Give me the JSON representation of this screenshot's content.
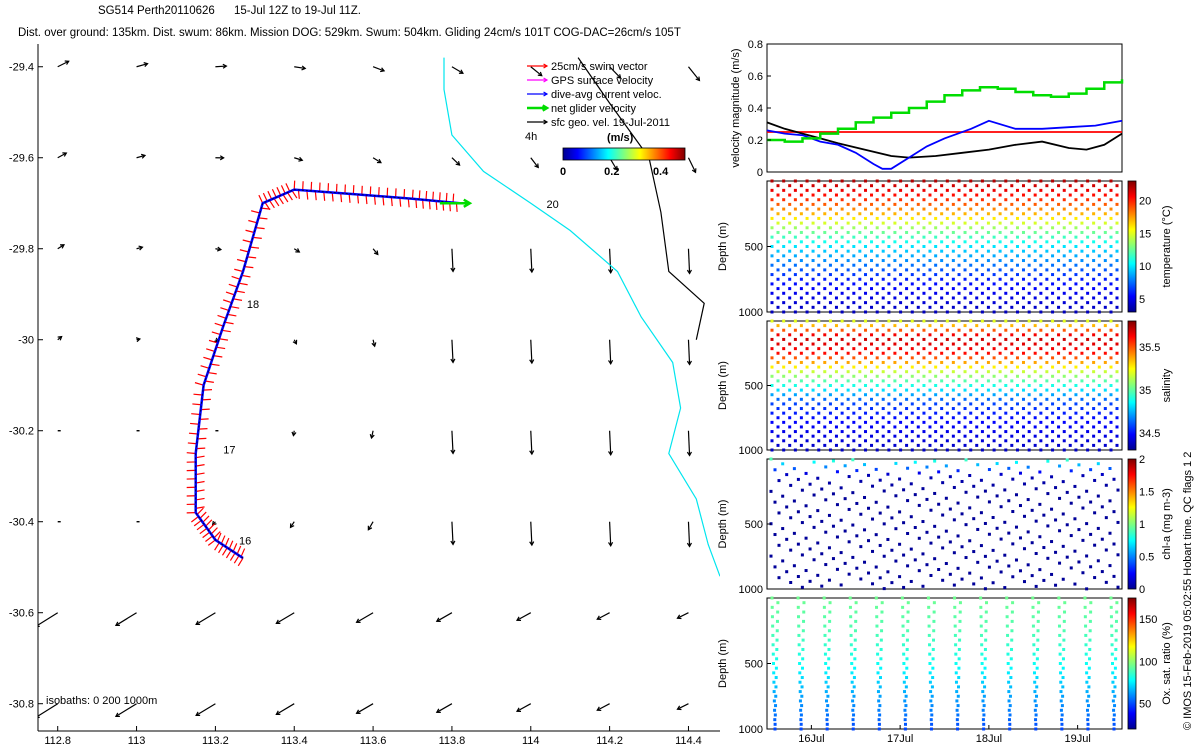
{
  "header": {
    "line1_id": "SG514 Perth20110626",
    "line1_dates": "15-Jul 12Z to 19-Jul 11Z.",
    "line2": "Dist. over ground: 135km. Dist. swum: 86km. Mission DOG: 529km. Swum: 504km. Gliding 24cm/s 101T COG-DAC=26cm/s 105T"
  },
  "side_note": "© IMOS 15-Feb-2019 05:02:55 Hobart time. QC flags 1  2",
  "colors": {
    "swim": "#ff0000",
    "gps": "#ff00ff",
    "dac": "#0000ff",
    "net": "#00dd00",
    "geo": "#000000",
    "cyan_isobath": "#00e5ee",
    "black_isobath": "#000000"
  },
  "map": {
    "xlim": [
      112.75,
      114.48
    ],
    "ylim": [
      -30.86,
      -29.35
    ],
    "xticks": [
      "112.8",
      "113",
      "113.2",
      "113.4",
      "113.6",
      "113.8",
      "114",
      "114.2",
      "114.4"
    ],
    "yticks": [
      "-29.4",
      "-29.6",
      "-29.8",
      "-30",
      "-30.2",
      "-30.4",
      "-30.6",
      "-30.8"
    ],
    "legend": [
      {
        "label": "25cm/s swim vector",
        "color": "#ff0000",
        "kind": "swim"
      },
      {
        "label": "GPS surface velocity",
        "color": "#ff00ff",
        "kind": "gps"
      },
      {
        "label": "dive-avg current veloc.",
        "color": "#0000ff",
        "kind": "dac"
      },
      {
        "label": "net glider velocity",
        "color": "#00dd00",
        "kind": "net"
      },
      {
        "label": "sfc geo. vel. 19-Jul-2011",
        "color": "#000000",
        "kind": "geo"
      }
    ],
    "scale_label": "4h",
    "speed_colorbar": {
      "label": "(m/s)",
      "ticks": [
        "0",
        "0.2",
        "0.4"
      ],
      "range": [
        0,
        0.5
      ]
    },
    "day_labels": [
      {
        "text": "16",
        "lon": 113.26,
        "lat": -30.45
      },
      {
        "text": "17",
        "lon": 113.22,
        "lat": -30.25
      },
      {
        "text": "18",
        "lon": 113.28,
        "lat": -29.93
      },
      {
        "text": "20",
        "lon": 114.04,
        "lat": -29.71
      }
    ],
    "isobath_note": "isobaths: 0   200  1000m"
  },
  "chart_data": [
    {
      "type": "line",
      "title": "",
      "xlabel": "",
      "ylabel": "velocity magnitude (m/s)",
      "xlim": [
        15.5,
        19.5
      ],
      "ylim": [
        0,
        0.8
      ],
      "yticks": [
        "0",
        "0.2",
        "0.4",
        "0.6",
        "0.8"
      ],
      "series": [
        {
          "color": "#ff0000",
          "x": [
            15.5,
            19.5
          ],
          "y": [
            0.25,
            0.25
          ]
        },
        {
          "color": "#000000",
          "x": [
            15.5,
            15.7,
            15.9,
            16.1,
            16.3,
            16.6,
            16.9,
            17.1,
            17.4,
            17.7,
            18.0,
            18.3,
            18.6,
            18.9,
            19.1,
            19.3,
            19.5
          ],
          "y": [
            0.31,
            0.27,
            0.24,
            0.21,
            0.18,
            0.14,
            0.1,
            0.09,
            0.1,
            0.12,
            0.14,
            0.17,
            0.19,
            0.15,
            0.14,
            0.17,
            0.24
          ]
        },
        {
          "color": "#0000ff",
          "x": [
            15.5,
            15.7,
            15.9,
            16.1,
            16.3,
            16.5,
            16.7,
            16.8,
            16.9,
            17.1,
            17.3,
            17.5,
            17.8,
            18.0,
            18.3,
            18.6,
            18.9,
            19.2,
            19.5
          ],
          "y": [
            0.26,
            0.24,
            0.23,
            0.19,
            0.17,
            0.12,
            0.05,
            0.02,
            0.02,
            0.09,
            0.16,
            0.21,
            0.27,
            0.32,
            0.27,
            0.27,
            0.28,
            0.29,
            0.32
          ]
        },
        {
          "color": "#00dd00",
          "x": [
            15.5,
            15.7,
            15.9,
            16.1,
            16.3,
            16.5,
            16.7,
            16.9,
            17.1,
            17.3,
            17.5,
            17.7,
            17.9,
            18.1,
            18.3,
            18.5,
            18.7,
            18.9,
            19.1,
            19.3,
            19.5
          ],
          "y": [
            0.2,
            0.19,
            0.21,
            0.24,
            0.27,
            0.31,
            0.34,
            0.37,
            0.4,
            0.44,
            0.48,
            0.51,
            0.53,
            0.52,
            0.5,
            0.48,
            0.47,
            0.49,
            0.52,
            0.56,
            0.58
          ]
        }
      ]
    },
    {
      "type": "scatter",
      "xlabel": "",
      "ylabel": "Depth (m)",
      "xlim": [
        15.5,
        19.5
      ],
      "ylim": [
        1000,
        0
      ],
      "yticks": [
        "500",
        "1000"
      ],
      "colorbar": {
        "label": "temperature (°C)",
        "range": [
          3,
          23
        ],
        "ticks": [
          "5",
          "10",
          "15",
          "20"
        ]
      },
      "profile_count": 30,
      "surface_to_depth_values": [
        22,
        20,
        17,
        13,
        10,
        8,
        6,
        5,
        4.2
      ]
    },
    {
      "type": "scatter",
      "xlabel": "",
      "ylabel": "Depth (m)",
      "xlim": [
        15.5,
        19.5
      ],
      "ylim": [
        1000,
        0
      ],
      "yticks": [
        "500",
        "1000"
      ],
      "colorbar": {
        "label": "salinity",
        "range": [
          34.3,
          35.8
        ],
        "ticks": [
          "34.5",
          "35",
          "35.5"
        ]
      },
      "profile_count": 30,
      "surface_to_depth_values": [
        35.2,
        35.7,
        35.6,
        35.2,
        34.9,
        34.6,
        34.5,
        34.45,
        34.4
      ]
    },
    {
      "type": "scatter",
      "xlabel": "",
      "ylabel": "Depth (m)",
      "xlim": [
        15.5,
        19.5
      ],
      "ylim": [
        1000,
        0
      ],
      "yticks": [
        "500",
        "1000"
      ],
      "colorbar": {
        "label": "chl-a (mg m-3)",
        "range": [
          0,
          2
        ],
        "ticks": [
          "0",
          "0.5",
          "1",
          "1.5",
          "2"
        ]
      },
      "profile_count": 30,
      "surface_to_depth_values": [
        0.9,
        0.1,
        0.05,
        0.05,
        0.05,
        0.05,
        0.05,
        0.05,
        0.05
      ]
    },
    {
      "type": "scatter",
      "xlabel": "",
      "ylabel": "Depth (m)",
      "xlim": [
        15.5,
        19.5
      ],
      "ylim": [
        1000,
        0
      ],
      "yticks": [
        "500",
        "1000"
      ],
      "xticks": [
        "16Jul",
        "17Jul",
        "18Jul",
        "19Jul"
      ],
      "colorbar": {
        "label": "Ox. sat. ratio (%)",
        "range": [
          20,
          175
        ],
        "ticks": [
          "50",
          "100",
          "150"
        ]
      },
      "profile_count": 14,
      "surface_to_depth_values": [
        95,
        92,
        90,
        85,
        80,
        72,
        64,
        58,
        50
      ]
    }
  ]
}
